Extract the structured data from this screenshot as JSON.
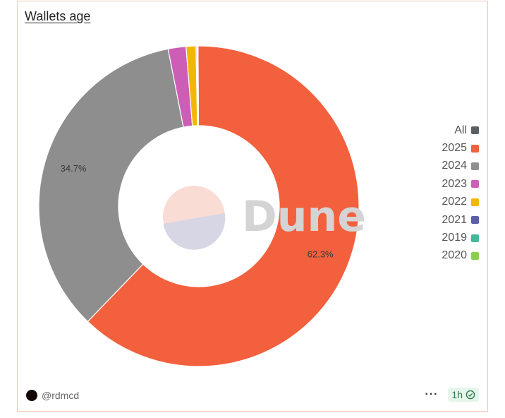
{
  "title": "Wallets age",
  "author": "@rdmcd",
  "refresh_badge": "1h",
  "watermark": "Dune",
  "icons": {
    "more": "more-horizontal-icon",
    "status": "check-circle-icon",
    "avatar": "avatar"
  },
  "colors": {
    "All": "#5a5f66",
    "2025": "#f2603d",
    "2024": "#8e8e8e",
    "2023": "#cc5fb5",
    "2022": "#f2b705",
    "2021": "#5b5fa8",
    "2019": "#44b89a",
    "2020": "#8ccf4d"
  },
  "legend": [
    "All",
    "2025",
    "2024",
    "2023",
    "2022",
    "2021",
    "2019",
    "2020"
  ],
  "chart_data": {
    "type": "pie",
    "title": "Wallets age",
    "donut": true,
    "categories": [
      "2025",
      "2024",
      "2023",
      "2022",
      "2021",
      "2019",
      "2020"
    ],
    "values": [
      62.3,
      34.7,
      1.8,
      1.0,
      0.1,
      0.05,
      0.05
    ],
    "data_labels": [
      "62.3%",
      "34.7%",
      "",
      "",
      "",
      "",
      ""
    ],
    "legend_position": "right"
  }
}
